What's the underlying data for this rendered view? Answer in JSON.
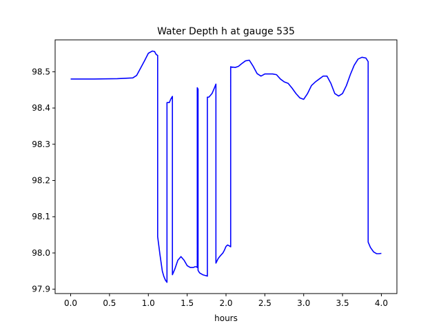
{
  "chart_data": {
    "type": "line",
    "title": "Water Depth h at gauge 535",
    "xlabel": "hours",
    "ylabel": "",
    "xlim": [
      -0.2,
      4.2
    ],
    "ylim": [
      97.888,
      98.588
    ],
    "xticks": [
      0.0,
      0.5,
      1.0,
      1.5,
      2.0,
      2.5,
      3.0,
      3.5,
      4.0
    ],
    "xtick_labels": [
      "0.0",
      "0.5",
      "1.0",
      "1.5",
      "2.0",
      "2.5",
      "3.0",
      "3.5",
      "4.0"
    ],
    "yticks": [
      97.9,
      98.0,
      98.1,
      98.2,
      98.3,
      98.4,
      98.5
    ],
    "ytick_labels": [
      "97.9",
      "98.0",
      "98.1",
      "98.2",
      "98.3",
      "98.4",
      "98.5"
    ],
    "grid": false,
    "series": [
      {
        "color": "#0000ff",
        "x": [
          0.0,
          0.3,
          0.6,
          0.8,
          0.85,
          0.9,
          0.95,
          1.0,
          1.05,
          1.08,
          1.1,
          1.12,
          1.12,
          1.15,
          1.18,
          1.2,
          1.22,
          1.24,
          1.24,
          1.27,
          1.29,
          1.31,
          1.31,
          1.34,
          1.38,
          1.42,
          1.46,
          1.5,
          1.54,
          1.58,
          1.6,
          1.62,
          1.63,
          1.63,
          1.64,
          1.64,
          1.66,
          1.7,
          1.73,
          1.75,
          1.76,
          1.76,
          1.78,
          1.82,
          1.85,
          1.87,
          1.87,
          1.9,
          1.93,
          1.96,
          1.98,
          2.0,
          2.02,
          2.04,
          2.06,
          2.06,
          2.08,
          2.08,
          2.12,
          2.16,
          2.2,
          2.25,
          2.3,
          2.35,
          2.4,
          2.45,
          2.5,
          2.55,
          2.6,
          2.65,
          2.7,
          2.75,
          2.8,
          2.85,
          2.9,
          2.95,
          3.0,
          3.05,
          3.1,
          3.15,
          3.2,
          3.25,
          3.3,
          3.35,
          3.4,
          3.45,
          3.5,
          3.55,
          3.6,
          3.65,
          3.7,
          3.75,
          3.8,
          3.83,
          3.83,
          3.86,
          3.9,
          3.94,
          3.97,
          4.0
        ],
        "y": [
          98.48,
          98.48,
          98.481,
          98.483,
          98.49,
          98.51,
          98.53,
          98.551,
          98.557,
          98.556,
          98.548,
          98.545,
          98.045,
          97.995,
          97.95,
          97.935,
          97.925,
          97.919,
          98.415,
          98.415,
          98.425,
          98.432,
          97.94,
          97.955,
          97.98,
          97.99,
          97.98,
          97.965,
          97.96,
          97.96,
          97.962,
          97.962,
          97.96,
          98.456,
          98.452,
          97.952,
          97.945,
          97.94,
          97.938,
          97.937,
          97.936,
          98.43,
          98.43,
          98.44,
          98.455,
          98.466,
          97.972,
          97.985,
          97.993,
          98.0,
          98.008,
          98.018,
          98.022,
          98.02,
          98.017,
          98.514,
          98.512,
          98.513,
          98.512,
          98.515,
          98.522,
          98.53,
          98.532,
          98.515,
          98.495,
          98.488,
          98.494,
          98.494,
          98.494,
          98.492,
          98.48,
          98.472,
          98.468,
          98.455,
          98.44,
          98.428,
          98.424,
          98.44,
          98.462,
          98.472,
          98.48,
          98.488,
          98.488,
          98.468,
          98.44,
          98.433,
          98.44,
          98.462,
          98.492,
          98.518,
          98.535,
          98.54,
          98.538,
          98.528,
          98.03,
          98.015,
          98.003,
          97.998,
          97.998,
          97.999
        ]
      }
    ]
  }
}
